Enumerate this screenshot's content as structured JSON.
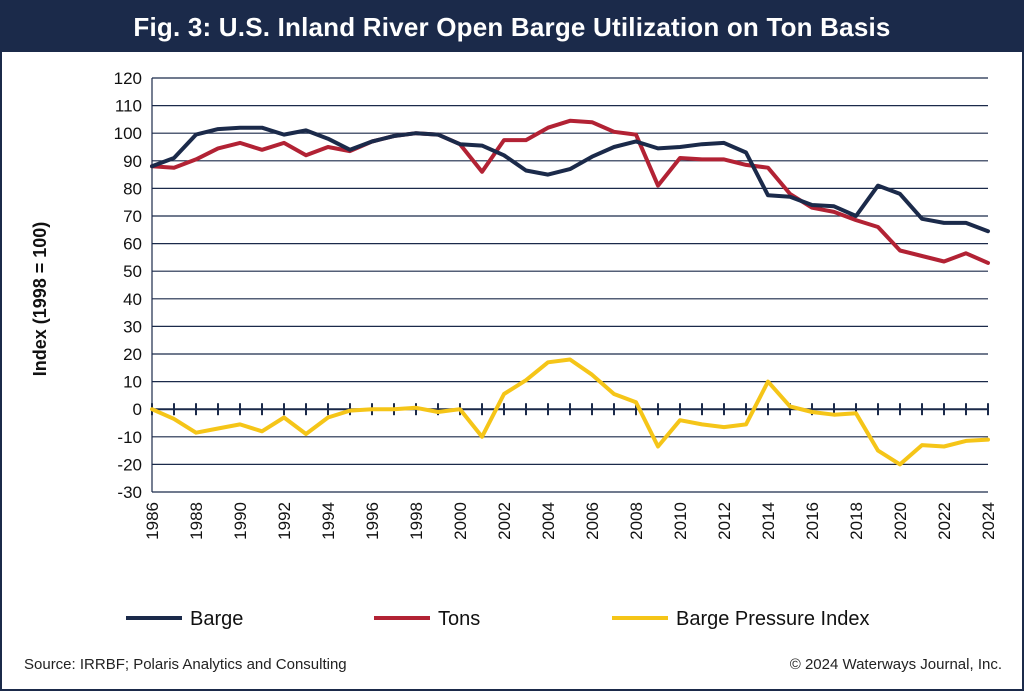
{
  "header": {
    "title": "Fig. 3: U.S. Inland River Open Barge Utilization on Ton Basis"
  },
  "footer": {
    "source": "Source: IRRBF; Polaris Analytics and Consulting",
    "copyright": "© 2024 Waterways Journal, Inc."
  },
  "colors": {
    "header_bg": "#1b2a4a",
    "barge": "#1b2a4a",
    "tons": "#b22234",
    "pressure": "#f5c518"
  },
  "chart_data": {
    "type": "line",
    "title": "Fig. 3: U.S. Inland River Open Barge Utilization on Ton Basis",
    "xlabel": "",
    "ylabel": "Index (1998 = 100)",
    "ylim": [
      -30,
      120
    ],
    "yticks": [
      120,
      110,
      100,
      90,
      80,
      70,
      60,
      50,
      40,
      30,
      20,
      10,
      0,
      -10,
      -20,
      -30
    ],
    "xlim": [
      1986,
      2024
    ],
    "xticks": [
      1986,
      1988,
      1990,
      1992,
      1994,
      1996,
      1998,
      2000,
      2002,
      2004,
      2006,
      2008,
      2010,
      2012,
      2014,
      2016,
      2018,
      2020,
      2022,
      2024
    ],
    "grid": true,
    "legend_position": "bottom",
    "x": [
      1986,
      1987,
      1988,
      1989,
      1990,
      1991,
      1992,
      1993,
      1994,
      1995,
      1996,
      1997,
      1998,
      1999,
      2000,
      2001,
      2002,
      2003,
      2004,
      2005,
      2006,
      2007,
      2008,
      2009,
      2010,
      2011,
      2012,
      2013,
      2014,
      2015,
      2016,
      2017,
      2018,
      2019,
      2020,
      2021,
      2022,
      2023,
      2024
    ],
    "series": [
      {
        "name": "Barge",
        "color": "#1b2a4a",
        "values": [
          88,
          91,
          99.5,
          101.5,
          102,
          102,
          99.5,
          101,
          98,
          94,
          97,
          99,
          100,
          99.5,
          96,
          95.5,
          92,
          86.5,
          85,
          87,
          91.5,
          95,
          97,
          94.5,
          95,
          96,
          96.5,
          93,
          77.5,
          77,
          74,
          73.5,
          70,
          81,
          78,
          69,
          67.5,
          67.5,
          64.5
        ]
      },
      {
        "name": "Tons",
        "color": "#b22234",
        "values": [
          88,
          87.5,
          90.5,
          94.5,
          96.5,
          94,
          96.5,
          92,
          95,
          93.5,
          97,
          99,
          100,
          99.5,
          96,
          86,
          97.5,
          97.5,
          102,
          104.5,
          104,
          100.5,
          99.5,
          81,
          91,
          90.5,
          90.5,
          88.5,
          87.5,
          78,
          73,
          71.5,
          68.5,
          66,
          57.5,
          55.5,
          53.5,
          56.5,
          53
        ]
      },
      {
        "name": "Barge Pressure Index",
        "color": "#f5c518",
        "values": [
          0,
          -3.5,
          -8.5,
          -7,
          -5.5,
          -8,
          -3,
          -9,
          -3,
          -0.5,
          0,
          0,
          0.5,
          -1,
          0,
          -10,
          5.5,
          10.5,
          17,
          18,
          12.5,
          5.5,
          2.5,
          -13.5,
          -4,
          -5.5,
          -6.5,
          -5.5,
          10,
          1,
          -1,
          -2,
          -1.5,
          -15,
          -20,
          -13,
          -13.5,
          -11.5,
          -11
        ]
      }
    ]
  }
}
